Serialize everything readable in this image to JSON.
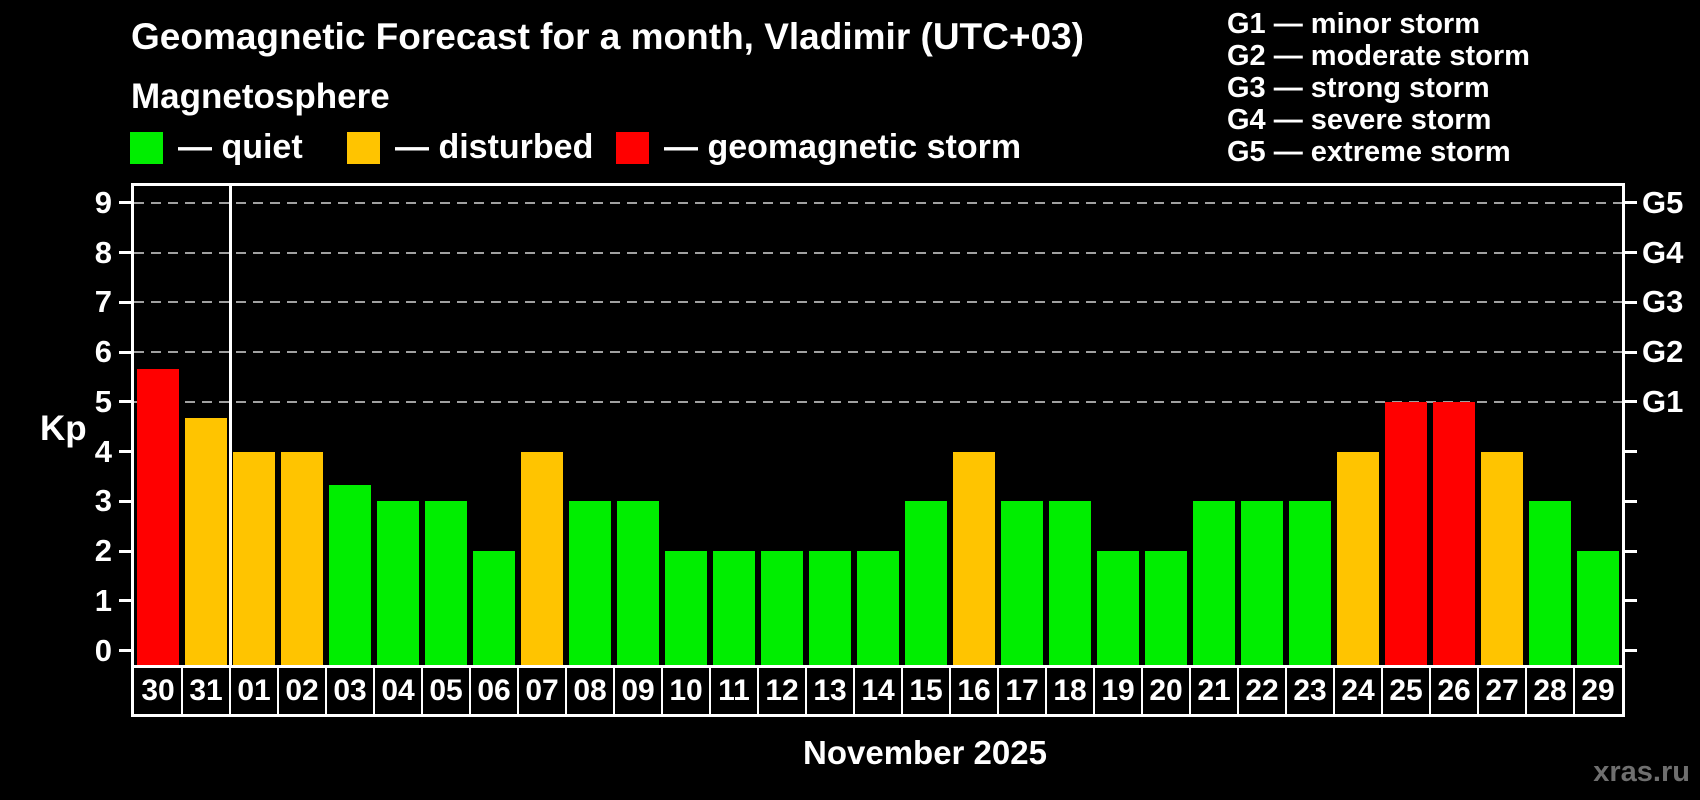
{
  "title": "Geomagnetic Forecast for a month, Vladimir (UTC+03)",
  "subtitle": "Magnetosphere",
  "legend": {
    "items": [
      {
        "status": "quiet",
        "label": "— quiet",
        "color": "#00ee00"
      },
      {
        "status": "disturbed",
        "label": "— disturbed",
        "color": "#ffc400"
      },
      {
        "status": "storm",
        "label": "— geomagnetic storm",
        "color": "#ff0000"
      }
    ]
  },
  "storm_scale_legend": {
    "items": [
      "G1 — minor storm",
      "G2 — moderate storm",
      "G3 — strong storm",
      "G4 — severe storm",
      "G5 — extreme storm"
    ]
  },
  "watermark": "xras.ru",
  "chart_data": {
    "type": "bar",
    "title": "Geomagnetic Forecast for a month, Vladimir (UTC+03)",
    "xlabel": "November 2025",
    "ylabel": "Kp",
    "ylim": [
      0,
      9.5
    ],
    "yticks": [
      0,
      1,
      2,
      3,
      4,
      5,
      6,
      7,
      8,
      9
    ],
    "grid": "horizontal dashed lines at Kp 5-9 (G1-G5 levels)",
    "gridlines_at_kp": [
      5,
      6,
      7,
      8,
      9
    ],
    "right_axis": {
      "ticks_at_kp": [
        0,
        1,
        2,
        3,
        4,
        5,
        6,
        7,
        8,
        9
      ],
      "labels": [
        {
          "kp": 5,
          "label": "G1"
        },
        {
          "kp": 6,
          "label": "G2"
        },
        {
          "kp": 7,
          "label": "G3"
        },
        {
          "kp": 8,
          "label": "G4"
        },
        {
          "kp": 9,
          "label": "G5"
        }
      ]
    },
    "month_separator_after_day": "31",
    "categories": [
      "30",
      "31",
      "01",
      "02",
      "03",
      "04",
      "05",
      "06",
      "07",
      "08",
      "09",
      "10",
      "11",
      "12",
      "13",
      "14",
      "15",
      "16",
      "17",
      "18",
      "19",
      "20",
      "21",
      "22",
      "23",
      "24",
      "25",
      "26",
      "27",
      "28",
      "29"
    ],
    "series": [
      {
        "name": "Kp index forecast",
        "values": [
          5.67,
          4.67,
          4,
          4,
          3.33,
          3,
          3,
          2,
          4,
          3,
          3,
          2,
          2,
          2,
          2,
          2,
          3,
          4,
          3,
          3,
          2,
          2,
          3,
          3,
          3,
          4,
          5,
          5,
          4,
          3,
          2
        ],
        "statuses": [
          "storm",
          "disturbed",
          "disturbed",
          "disturbed",
          "quiet",
          "quiet",
          "quiet",
          "quiet",
          "disturbed",
          "quiet",
          "quiet",
          "quiet",
          "quiet",
          "quiet",
          "quiet",
          "quiet",
          "quiet",
          "disturbed",
          "quiet",
          "quiet",
          "quiet",
          "quiet",
          "quiet",
          "quiet",
          "quiet",
          "disturbed",
          "storm",
          "storm",
          "disturbed",
          "quiet",
          "quiet"
        ]
      }
    ],
    "status_colors": {
      "quiet": "#00ee00",
      "disturbed": "#ffc400",
      "storm": "#ff0000"
    },
    "legend_position": "top-left (status colors) and top-right (G scale)"
  }
}
